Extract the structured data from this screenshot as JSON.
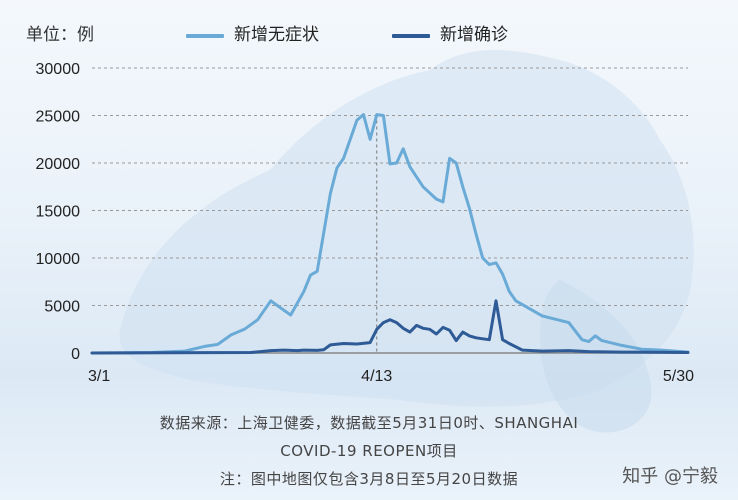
{
  "header": {
    "unit": "单位：例"
  },
  "legend": [
    {
      "name": "新增无症状",
      "color": "#6aaad6"
    },
    {
      "name": "新增确诊",
      "color": "#2e5a96"
    }
  ],
  "chart_data": {
    "type": "line",
    "ylim": [
      0,
      30000
    ],
    "yticks": [
      0,
      5000,
      10000,
      15000,
      20000,
      25000,
      30000
    ],
    "ytick_labels": [
      "0",
      "5000",
      "10000",
      "15000",
      "20000",
      "25000",
      "30000"
    ],
    "xrange": [
      "3/1",
      "5/30"
    ],
    "xticks": [
      "3/1",
      "4/13",
      "5/30"
    ],
    "grid": true,
    "annotation": "dashed vertical line at 4/13",
    "series": [
      {
        "name": "新增无症状",
        "color": "#6aaad6",
        "points": [
          [
            "3/1",
            0
          ],
          [
            "3/10",
            50
          ],
          [
            "3/15",
            200
          ],
          [
            "3/18",
            700
          ],
          [
            "3/20",
            900
          ],
          [
            "3/22",
            1900
          ],
          [
            "3/24",
            2500
          ],
          [
            "3/26",
            3500
          ],
          [
            "3/28",
            5500
          ],
          [
            "3/30",
            4500
          ],
          [
            "3/31",
            4000
          ],
          [
            "4/2",
            6500
          ],
          [
            "4/3",
            8200
          ],
          [
            "4/4",
            8600
          ],
          [
            "4/6",
            16800
          ],
          [
            "4/7",
            19500
          ],
          [
            "4/8",
            20500
          ],
          [
            "4/10",
            24500
          ],
          [
            "4/11",
            25100
          ],
          [
            "4/12",
            22500
          ],
          [
            "4/13",
            25100
          ],
          [
            "4/14",
            25000
          ],
          [
            "4/15",
            19900
          ],
          [
            "4/16",
            20000
          ],
          [
            "4/17",
            21500
          ],
          [
            "4/18",
            19600
          ],
          [
            "4/20",
            17500
          ],
          [
            "4/22",
            16200
          ],
          [
            "4/23",
            15900
          ],
          [
            "4/24",
            20500
          ],
          [
            "4/25",
            20000
          ],
          [
            "4/26",
            17500
          ],
          [
            "4/27",
            15200
          ],
          [
            "4/28",
            12500
          ],
          [
            "4/29",
            10000
          ],
          [
            "4/30",
            9300
          ],
          [
            "5/1",
            9500
          ],
          [
            "5/2",
            8300
          ],
          [
            "5/3",
            6500
          ],
          [
            "5/4",
            5500
          ],
          [
            "5/6",
            4700
          ],
          [
            "5/8",
            3900
          ],
          [
            "5/12",
            3200
          ],
          [
            "5/14",
            1400
          ],
          [
            "5/15",
            1200
          ],
          [
            "5/16",
            1800
          ],
          [
            "5/17",
            1300
          ],
          [
            "5/20",
            800
          ],
          [
            "5/23",
            400
          ],
          [
            "5/26",
            300
          ],
          [
            "5/30",
            100
          ]
        ]
      },
      {
        "name": "新增确诊",
        "color": "#2e5a96",
        "points": [
          [
            "3/1",
            0
          ],
          [
            "3/25",
            50
          ],
          [
            "3/28",
            250
          ],
          [
            "3/30",
            300
          ],
          [
            "4/1",
            250
          ],
          [
            "4/2",
            300
          ],
          [
            "4/4",
            270
          ],
          [
            "4/5",
            350
          ],
          [
            "4/6",
            850
          ],
          [
            "4/8",
            1000
          ],
          [
            "4/10",
            950
          ],
          [
            "4/12",
            1100
          ],
          [
            "4/13",
            2500
          ],
          [
            "4/14",
            3200
          ],
          [
            "4/15",
            3500
          ],
          [
            "4/16",
            3200
          ],
          [
            "4/17",
            2600
          ],
          [
            "4/18",
            2200
          ],
          [
            "4/19",
            2900
          ],
          [
            "4/20",
            2600
          ],
          [
            "4/21",
            2500
          ],
          [
            "4/22",
            2000
          ],
          [
            "4/23",
            2700
          ],
          [
            "4/24",
            2400
          ],
          [
            "4/25",
            1300
          ],
          [
            "4/26",
            2200
          ],
          [
            "4/27",
            1800
          ],
          [
            "4/28",
            1600
          ],
          [
            "4/29",
            1500
          ],
          [
            "4/30",
            1400
          ],
          [
            "5/1",
            5500
          ],
          [
            "5/2",
            1400
          ],
          [
            "5/3",
            1000
          ],
          [
            "5/5",
            300
          ],
          [
            "5/8",
            200
          ],
          [
            "5/12",
            250
          ],
          [
            "5/15",
            150
          ],
          [
            "5/20",
            100
          ],
          [
            "5/30",
            50
          ]
        ]
      }
    ]
  },
  "footer": {
    "line1": "数据来源：上海卫健委，数据截至5月31日0时、SHANGHAI",
    "line2": "COVID-19 REOPEN项目",
    "line3": "注：图中地图仅包含3月8日至5月20日数据"
  },
  "watermark": "知乎 @宁毅"
}
